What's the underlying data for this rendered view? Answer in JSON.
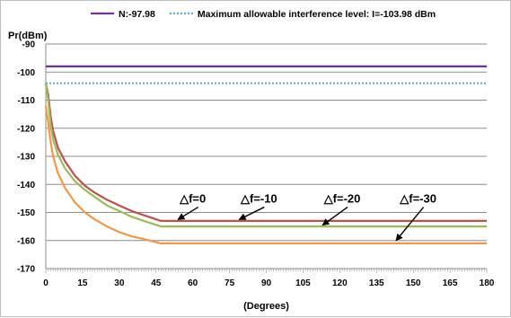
{
  "chart_data": {
    "type": "line",
    "title": "",
    "ylabel": "Pr(dBm)",
    "xlabel": "(Degrees)",
    "xlim": [
      0,
      180
    ],
    "ylim": [
      -170,
      -90
    ],
    "x_ticks": [
      "0",
      "15",
      "30",
      "45",
      "60",
      "75",
      "90",
      "105",
      "120",
      "135",
      "150",
      "165",
      "180"
    ],
    "y_ticks": [
      "-90",
      "-100",
      "-110",
      "-120",
      "-130",
      "-140",
      "-150",
      "-160",
      "-170"
    ],
    "grid": true,
    "legend_position": "top",
    "series": [
      {
        "name": "N:-97.98",
        "color": "#7030a0",
        "style": "solid",
        "x": [
          0,
          180
        ],
        "y": [
          -97.98,
          -97.98
        ]
      },
      {
        "name": "Maximum allowable interference level: I=-103.98 dBm",
        "color": "#4bacc6",
        "style": "dotted",
        "x": [
          0,
          180
        ],
        "y": [
          -103.98,
          -103.98
        ]
      },
      {
        "name": "",
        "color": "#c0504d",
        "style": "solid",
        "x": [
          0,
          1,
          2,
          3,
          5,
          8,
          12,
          16,
          20,
          25,
          30,
          35,
          40,
          47,
          180
        ],
        "y": [
          -104,
          -108,
          -116,
          -121,
          -127,
          -132,
          -137,
          -140.5,
          -143,
          -145.5,
          -147.5,
          -149.5,
          -151,
          -153,
          -153
        ]
      },
      {
        "name": "",
        "color": "#9bbb59",
        "style": "solid",
        "x": [
          0,
          1,
          2,
          3,
          5,
          8,
          12,
          16,
          20,
          25,
          30,
          35,
          40,
          47,
          180
        ],
        "y": [
          -104,
          -110,
          -119,
          -124,
          -129.5,
          -134.5,
          -139,
          -142,
          -144.5,
          -147.5,
          -149.5,
          -151.5,
          -153,
          -155,
          -155
        ]
      },
      {
        "name": "",
        "color": "#f79646",
        "style": "solid",
        "x": [
          0,
          1,
          2,
          3,
          5,
          8,
          12,
          16,
          20,
          25,
          30,
          35,
          40,
          47,
          180
        ],
        "y": [
          -112,
          -118,
          -125,
          -130,
          -136,
          -141.5,
          -146.5,
          -150,
          -152.5,
          -155,
          -157,
          -158.5,
          -159.5,
          -161,
          -161
        ]
      }
    ],
    "annotations": [
      {
        "text": "△f=0",
        "x_label": 60,
        "y_label": -146.5,
        "x_arrow_end": 54,
        "y_arrow_end": -152.5
      },
      {
        "text": "△f=-10",
        "x_label": 87,
        "y_label": -146.5,
        "x_arrow_end": 79,
        "y_arrow_end": -152.5
      },
      {
        "text": "△f=-20",
        "x_label": 121,
        "y_label": -146.5,
        "x_arrow_end": 113,
        "y_arrow_end": -154.5
      },
      {
        "text": "△f=-30",
        "x_label": 152,
        "y_label": -146.5,
        "x_arrow_end": 143,
        "y_arrow_end": -160
      }
    ]
  }
}
